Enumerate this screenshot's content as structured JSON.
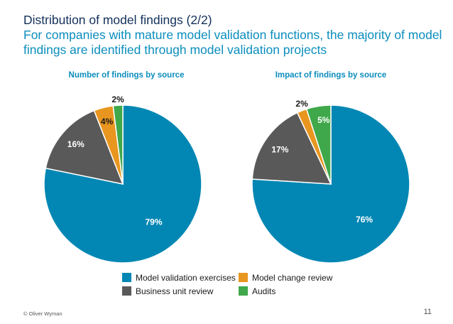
{
  "header": {
    "title": "Distribution of model findings (2/2)",
    "subtitle": "For companies with mature model validation functions, the majority of model findings are identified through model validation projects"
  },
  "colors": {
    "validation": "#0287b4",
    "business": "#595959",
    "change": "#e8961f",
    "audits": "#3fa84a"
  },
  "chart_data": [
    {
      "type": "pie",
      "title": "Number of findings by source",
      "slices": [
        {
          "name": "Model validation exercises",
          "value": 79,
          "label": "79%",
          "color": "#0287b4"
        },
        {
          "name": "Business unit review",
          "value": 16,
          "label": "16%",
          "color": "#595959"
        },
        {
          "name": "Model change review",
          "value": 4,
          "label": "4%",
          "color": "#e8961f"
        },
        {
          "name": "Audits",
          "value": 2,
          "label": "2%",
          "color": "#3fa84a"
        }
      ]
    },
    {
      "type": "pie",
      "title": "Impact of findings by source",
      "slices": [
        {
          "name": "Model validation exercises",
          "value": 76,
          "label": "76%",
          "color": "#0287b4"
        },
        {
          "name": "Business unit review",
          "value": 17,
          "label": "17%",
          "color": "#595959"
        },
        {
          "name": "Model change review",
          "value": 2,
          "label": "2%",
          "color": "#e8961f"
        },
        {
          "name": "Audits",
          "value": 5,
          "label": "5%",
          "color": "#3fa84a"
        }
      ]
    }
  ],
  "legend": [
    {
      "label": "Model validation exercises",
      "color": "#0287b4"
    },
    {
      "label": "Model change review",
      "color": "#e8961f"
    },
    {
      "label": "Business unit review",
      "color": "#595959"
    },
    {
      "label": "Audits",
      "color": "#3fa84a"
    }
  ],
  "footer": {
    "copyright": "© Oliver Wyman",
    "page_number": "11"
  }
}
